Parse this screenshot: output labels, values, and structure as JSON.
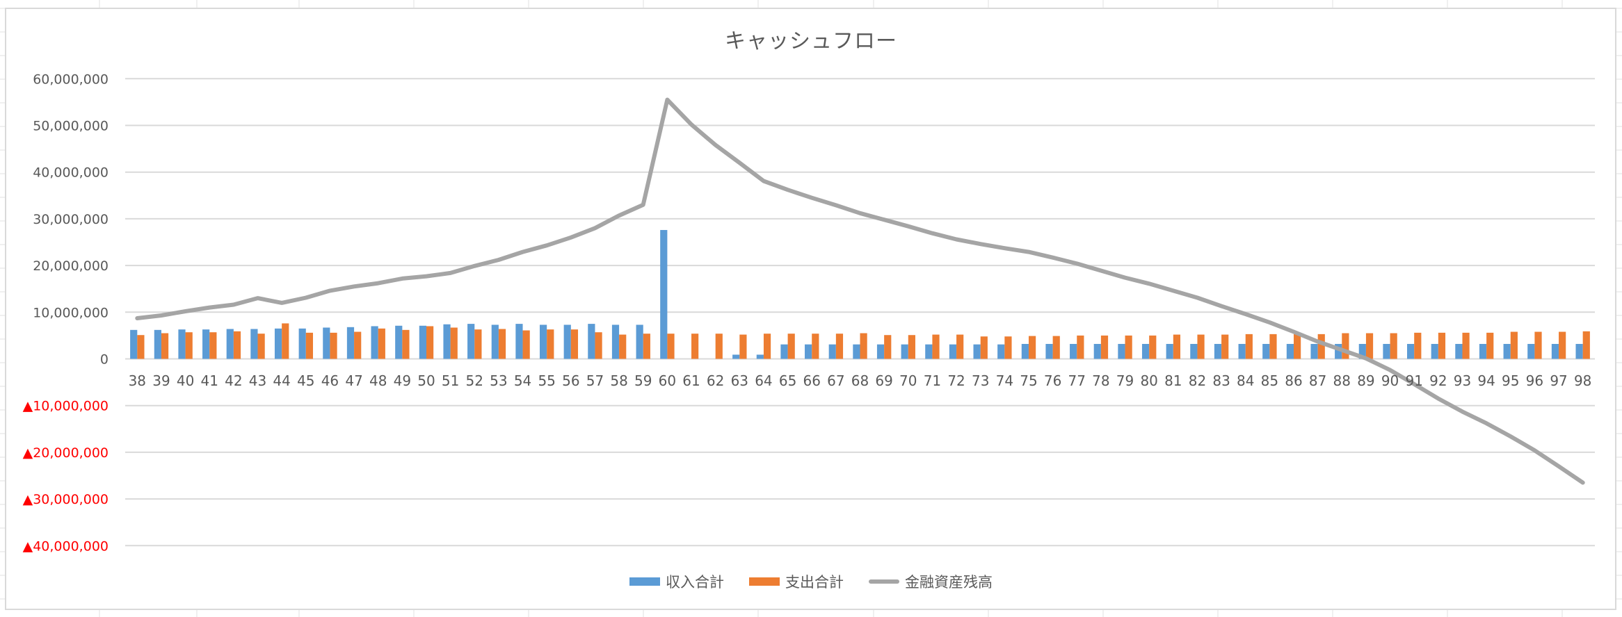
{
  "chart_data": {
    "type": "bar",
    "combo": true,
    "title": "キャッシュフロー",
    "xlabel": "",
    "ylabel": "",
    "ylim": [
      -40000000,
      60000000
    ],
    "y_ticks": [
      60000000,
      50000000,
      40000000,
      30000000,
      20000000,
      10000000,
      0,
      -10000000,
      -20000000,
      -30000000,
      -40000000
    ],
    "y_tick_labels": [
      "60,000,000",
      "50,000,000",
      "40,000,000",
      "30,000,000",
      "20,000,000",
      "10,000,000",
      "0",
      "▲10,000,000",
      "▲20,000,000",
      "▲30,000,000",
      "▲40,000,000"
    ],
    "negative_label_color": "#ff0000",
    "grid": true,
    "legend_position": "bottom",
    "categories": [
      "38",
      "39",
      "40",
      "41",
      "42",
      "43",
      "44",
      "45",
      "46",
      "47",
      "48",
      "49",
      "50",
      "51",
      "52",
      "53",
      "54",
      "55",
      "56",
      "57",
      "58",
      "59",
      "60",
      "61",
      "62",
      "63",
      "64",
      "65",
      "66",
      "67",
      "68",
      "69",
      "70",
      "71",
      "72",
      "73",
      "74",
      "75",
      "76",
      "77",
      "78",
      "79",
      "80",
      "81",
      "82",
      "83",
      "84",
      "85",
      "86",
      "87",
      "88",
      "89",
      "90",
      "91",
      "92",
      "93",
      "94",
      "95",
      "96",
      "97",
      "98"
    ],
    "series": [
      {
        "name": "収入合計",
        "type": "bar",
        "color": "#5b9bd5",
        "values": [
          6200000,
          6200000,
          6300000,
          6300000,
          6400000,
          6400000,
          6500000,
          6500000,
          6700000,
          6800000,
          7000000,
          7100000,
          7100000,
          7400000,
          7500000,
          7300000,
          7500000,
          7300000,
          7300000,
          7500000,
          7300000,
          7300000,
          27600000,
          0,
          0,
          900000,
          900000,
          3100000,
          3100000,
          3100000,
          3100000,
          3100000,
          3100000,
          3100000,
          3100000,
          3100000,
          3100000,
          3200000,
          3200000,
          3200000,
          3200000,
          3200000,
          3200000,
          3200000,
          3200000,
          3200000,
          3200000,
          3200000,
          3200000,
          3200000,
          3200000,
          3200000,
          3200000,
          3200000,
          3200000,
          3200000,
          3200000,
          3200000,
          3200000,
          3200000,
          3200000
        ]
      },
      {
        "name": "支出合計",
        "type": "bar",
        "color": "#ed7d31",
        "values": [
          5100000,
          5500000,
          5700000,
          5700000,
          5900000,
          5400000,
          7600000,
          5600000,
          5600000,
          5800000,
          6500000,
          6200000,
          7000000,
          6700000,
          6300000,
          6400000,
          6100000,
          6300000,
          6300000,
          5700000,
          5200000,
          5400000,
          5400000,
          5400000,
          5400000,
          5200000,
          5400000,
          5400000,
          5400000,
          5400000,
          5500000,
          5100000,
          5100000,
          5200000,
          5200000,
          4800000,
          4800000,
          4900000,
          4900000,
          5000000,
          5000000,
          5000000,
          5000000,
          5200000,
          5200000,
          5200000,
          5300000,
          5300000,
          5300000,
          5300000,
          5500000,
          5500000,
          5500000,
          5600000,
          5600000,
          5600000,
          5600000,
          5800000,
          5800000,
          5800000,
          5900000
        ]
      },
      {
        "name": "金融資産残高",
        "type": "line",
        "color": "#a5a5a5",
        "values": [
          8700000,
          9300000,
          10200000,
          11000000,
          11600000,
          13000000,
          12000000,
          13100000,
          14600000,
          15500000,
          16200000,
          17200000,
          17700000,
          18400000,
          19900000,
          21200000,
          22900000,
          24300000,
          26000000,
          28000000,
          30700000,
          33000000,
          55500000,
          50200000,
          45800000,
          42000000,
          38100000,
          36200000,
          34500000,
          32900000,
          31200000,
          29800000,
          28400000,
          26900000,
          25600000,
          24600000,
          23700000,
          22900000,
          21700000,
          20400000,
          18900000,
          17400000,
          16100000,
          14600000,
          13100000,
          11300000,
          9600000,
          7800000,
          5800000,
          3700000,
          1900000,
          100000,
          -2400000,
          -5400000,
          -8500000,
          -11300000,
          -13800000,
          -16600000,
          -19600000,
          -23000000,
          -26500000
        ]
      }
    ]
  },
  "chart": {
    "title": "キャッシュフロー",
    "legend": [
      {
        "label": "収入合計",
        "kind": "bar",
        "color": "#5b9bd5"
      },
      {
        "label": "支出合計",
        "kind": "bar",
        "color": "#ed7d31"
      },
      {
        "label": "金融資産残高",
        "kind": "line",
        "color": "#a5a5a5"
      }
    ]
  },
  "colors": {
    "gridline": "#d9d9d9",
    "axis_text": "#595959",
    "negative_text": "#ff0000",
    "frame": "#d9d9d9",
    "sheet_grid": "#e1e1e1"
  }
}
